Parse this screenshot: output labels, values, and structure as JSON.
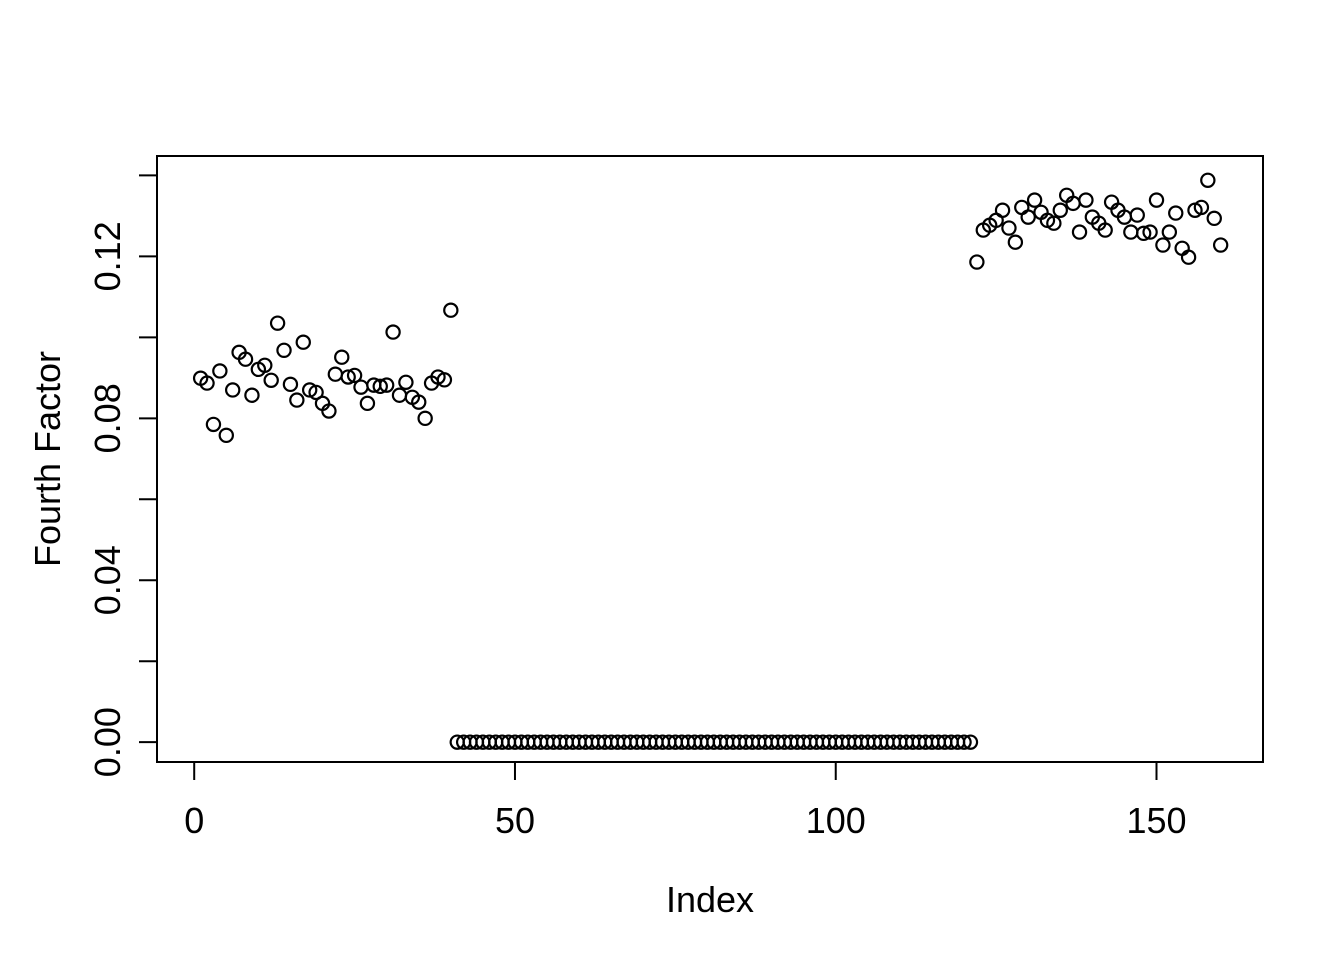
{
  "figure": {
    "background": "#ffffff",
    "foreground": "#000000"
  },
  "chart_data": {
    "type": "scatter",
    "title": "",
    "xlabel": "Index",
    "ylabel": "Fourth Factor",
    "marker": "open-circle",
    "grid": false,
    "legend": "none",
    "xlim": [
      -5.8,
      166.6
    ],
    "ylim": [
      -0.0049,
      0.1448
    ],
    "x_ticks": [
      0,
      50,
      100,
      150
    ],
    "x_tick_labels": [
      "0",
      "50",
      "100",
      "150"
    ],
    "y_ticks_minor": [
      0.0,
      0.02,
      0.04,
      0.06,
      0.08,
      0.1,
      0.12,
      0.14
    ],
    "y_ticks_labeled": [
      0.0,
      0.04,
      0.08,
      0.12
    ],
    "y_tick_labels": [
      "0.00",
      "0.04",
      "0.08",
      "0.12"
    ],
    "series": [
      {
        "name": "Fourth Factor",
        "x_start": 1,
        "n": 160,
        "y": [
          0.0899,
          0.0887,
          0.0785,
          0.0917,
          0.0758,
          0.087,
          0.0963,
          0.0946,
          0.0857,
          0.0921,
          0.0931,
          0.0894,
          0.1035,
          0.0968,
          0.0884,
          0.0845,
          0.0988,
          0.087,
          0.0864,
          0.0837,
          0.0818,
          0.0909,
          0.0951,
          0.0902,
          0.0906,
          0.0877,
          0.0837,
          0.0882,
          0.0879,
          0.0882,
          0.1013,
          0.0857,
          0.0889,
          0.0852,
          0.084,
          0.08,
          0.0887,
          0.0902,
          0.0895,
          0.1067,
          0,
          0,
          0,
          0,
          0,
          0,
          0,
          0,
          0,
          0,
          0,
          0,
          0,
          0,
          0,
          0,
          0,
          0,
          0,
          0,
          0,
          0,
          0,
          0,
          0,
          0,
          0,
          0,
          0,
          0,
          0,
          0,
          0,
          0,
          0,
          0,
          0,
          0,
          0,
          0,
          0,
          0,
          0,
          0,
          0,
          0,
          0,
          0,
          0,
          0,
          0,
          0,
          0,
          0,
          0,
          0,
          0,
          0,
          0,
          0,
          0,
          0,
          0,
          0,
          0,
          0,
          0,
          0,
          0,
          0,
          0,
          0,
          0,
          0,
          0,
          0,
          0,
          0,
          0,
          0,
          0,
          0.1186,
          0.1265,
          0.1277,
          0.1289,
          0.1314,
          0.127,
          0.1235,
          0.1321,
          0.1297,
          0.1339,
          0.1309,
          0.1289,
          0.1282,
          0.1314,
          0.1351,
          0.1331,
          0.126,
          0.1339,
          0.1297,
          0.1282,
          0.1265,
          0.1334,
          0.1314,
          0.1297,
          0.126,
          0.1302,
          0.1257,
          0.126,
          0.1339,
          0.1228,
          0.126,
          0.1307,
          0.122,
          0.1198,
          0.1314,
          0.1321,
          0.1388,
          0.1294,
          0.1228
        ]
      }
    ]
  }
}
